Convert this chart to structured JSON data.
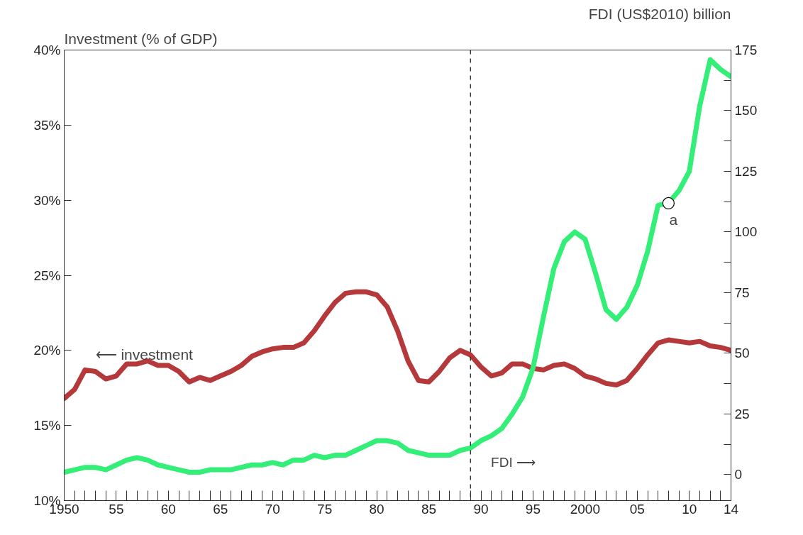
{
  "chart_data": {
    "type": "line",
    "ylabel": "Investment (% of GDP)",
    "y2label": "FDI (US$2010) billion",
    "x": [
      1950,
      1951,
      1952,
      1953,
      1954,
      1955,
      1956,
      1957,
      1958,
      1959,
      1960,
      1961,
      1962,
      1963,
      1964,
      1965,
      1966,
      1967,
      1968,
      1969,
      1970,
      1971,
      1972,
      1973,
      1974,
      1975,
      1976,
      1977,
      1978,
      1979,
      1980,
      1981,
      1982,
      1983,
      1984,
      1985,
      1986,
      1987,
      1988,
      1989,
      1990,
      1991,
      1992,
      1993,
      1994,
      1995,
      1996,
      1997,
      1998,
      1999,
      2000,
      2001,
      2002,
      2003,
      2004,
      2005,
      2006,
      2007,
      2008,
      2009,
      2010,
      2011,
      2012,
      2013,
      2014
    ],
    "series": [
      {
        "name": "⟵ investment",
        "color": "#b5393b",
        "values": [
          16.8,
          17.4,
          18.7,
          18.6,
          18.1,
          18.3,
          19.1,
          19.1,
          19.3,
          19.0,
          19.0,
          18.6,
          17.9,
          18.2,
          18.0,
          18.3,
          18.6,
          19.0,
          19.6,
          19.9,
          20.1,
          20.2,
          20.2,
          20.5,
          21.3,
          22.3,
          23.2,
          23.8,
          23.9,
          23.9,
          23.7,
          22.9,
          21.3,
          19.3,
          18.0,
          17.9,
          18.6,
          19.5,
          20.0,
          19.7,
          18.9,
          18.3,
          18.5,
          19.1,
          19.1,
          18.8,
          18.7,
          19.0,
          19.1,
          18.8,
          18.3,
          18.1,
          17.8,
          17.7,
          18.0,
          18.8,
          19.7,
          20.5,
          20.7,
          20.6,
          20.5,
          20.6,
          20.3,
          20.2,
          20.0
        ]
      },
      {
        "name": "FDI ⟶",
        "color": "#33ee77",
        "axis": "y2",
        "values": [
          1,
          2,
          3,
          3,
          2,
          4,
          6,
          7,
          6,
          4,
          3,
          2,
          1,
          1,
          2,
          2,
          2,
          3,
          4,
          4,
          5,
          4,
          6,
          6,
          8,
          7,
          8,
          8,
          10,
          12,
          14,
          14,
          13,
          10,
          9,
          8,
          8,
          8,
          10,
          11,
          14,
          16,
          19,
          25,
          32,
          44,
          65,
          85,
          96,
          100,
          97,
          83,
          68,
          64,
          69,
          78,
          92,
          111,
          112,
          117,
          125,
          152,
          171,
          167,
          164
        ]
      }
    ],
    "xlim": [
      1950,
      2014
    ],
    "xticks": [
      {
        "value": 1950,
        "label": "1950"
      },
      {
        "value": 1951,
        "label": null
      },
      {
        "value": 1952,
        "label": null
      },
      {
        "value": 1953,
        "label": null
      },
      {
        "value": 1954,
        "label": null
      },
      {
        "value": 1955,
        "label": "55"
      },
      {
        "value": 1956,
        "label": null
      },
      {
        "value": 1957,
        "label": null
      },
      {
        "value": 1958,
        "label": null
      },
      {
        "value": 1959,
        "label": null
      },
      {
        "value": 1960,
        "label": "60"
      },
      {
        "value": 1961,
        "label": null
      },
      {
        "value": 1962,
        "label": null
      },
      {
        "value": 1963,
        "label": null
      },
      {
        "value": 1964,
        "label": null
      },
      {
        "value": 1965,
        "label": "65"
      },
      {
        "value": 1966,
        "label": null
      },
      {
        "value": 1967,
        "label": null
      },
      {
        "value": 1968,
        "label": null
      },
      {
        "value": 1969,
        "label": null
      },
      {
        "value": 1970,
        "label": "70"
      },
      {
        "value": 1971,
        "label": null
      },
      {
        "value": 1972,
        "label": null
      },
      {
        "value": 1973,
        "label": null
      },
      {
        "value": 1974,
        "label": null
      },
      {
        "value": 1975,
        "label": "75"
      },
      {
        "value": 1976,
        "label": null
      },
      {
        "value": 1977,
        "label": null
      },
      {
        "value": 1978,
        "label": null
      },
      {
        "value": 1979,
        "label": null
      },
      {
        "value": 1980,
        "label": "80"
      },
      {
        "value": 1981,
        "label": null
      },
      {
        "value": 1982,
        "label": null
      },
      {
        "value": 1983,
        "label": null
      },
      {
        "value": 1984,
        "label": null
      },
      {
        "value": 1985,
        "label": "85"
      },
      {
        "value": 1986,
        "label": null
      },
      {
        "value": 1987,
        "label": null
      },
      {
        "value": 1988,
        "label": null
      },
      {
        "value": 1989,
        "label": null
      },
      {
        "value": 1990,
        "label": "90"
      },
      {
        "value": 1991,
        "label": null
      },
      {
        "value": 1992,
        "label": null
      },
      {
        "value": 1993,
        "label": null
      },
      {
        "value": 1994,
        "label": null
      },
      {
        "value": 1995,
        "label": "95"
      },
      {
        "value": 1996,
        "label": null
      },
      {
        "value": 1997,
        "label": null
      },
      {
        "value": 1998,
        "label": null
      },
      {
        "value": 1999,
        "label": null
      },
      {
        "value": 2000,
        "label": "2000"
      },
      {
        "value": 2001,
        "label": null
      },
      {
        "value": 2002,
        "label": null
      },
      {
        "value": 2003,
        "label": null
      },
      {
        "value": 2004,
        "label": null
      },
      {
        "value": 2005,
        "label": "05"
      },
      {
        "value": 2006,
        "label": null
      },
      {
        "value": 2007,
        "label": null
      },
      {
        "value": 2008,
        "label": null
      },
      {
        "value": 2009,
        "label": null
      },
      {
        "value": 2010,
        "label": "10"
      },
      {
        "value": 2011,
        "label": null
      },
      {
        "value": 2012,
        "label": null
      },
      {
        "value": 2013,
        "label": null
      },
      {
        "value": 2014,
        "label": "14"
      }
    ],
    "ylim": [
      10,
      40
    ],
    "yticks": [
      {
        "value": 10,
        "label": "10%"
      },
      {
        "value": 15,
        "label": "15%"
      },
      {
        "value": 20,
        "label": "20%"
      },
      {
        "value": 25,
        "label": "25%"
      },
      {
        "value": 30,
        "label": "30%"
      },
      {
        "value": 35,
        "label": "35%"
      },
      {
        "value": 40,
        "label": "40%"
      }
    ],
    "y2lim": [
      -10.7,
      175
    ],
    "y2ticks": [
      0,
      {
        "value": 12.5,
        "label": null
      },
      25,
      {
        "value": 37.5,
        "label": null
      },
      50,
      {
        "value": 62.5,
        "label": null
      },
      75,
      {
        "value": 87.5,
        "label": null
      },
      100,
      {
        "value": 112.5,
        "label": null
      },
      125,
      {
        "value": 137.5,
        "label": null
      },
      150,
      {
        "value": 162.5,
        "label": null
      },
      175
    ],
    "ref_lines": [
      {
        "axis": "x",
        "value": 1989,
        "line_style": "dashed",
        "color": "#333333"
      }
    ],
    "annotations": [
      {
        "text": "a",
        "x": 2008,
        "y": 29.8
      }
    ],
    "grid": false,
    "legend": "left",
    "marker": "none",
    "line_style": "solid"
  }
}
